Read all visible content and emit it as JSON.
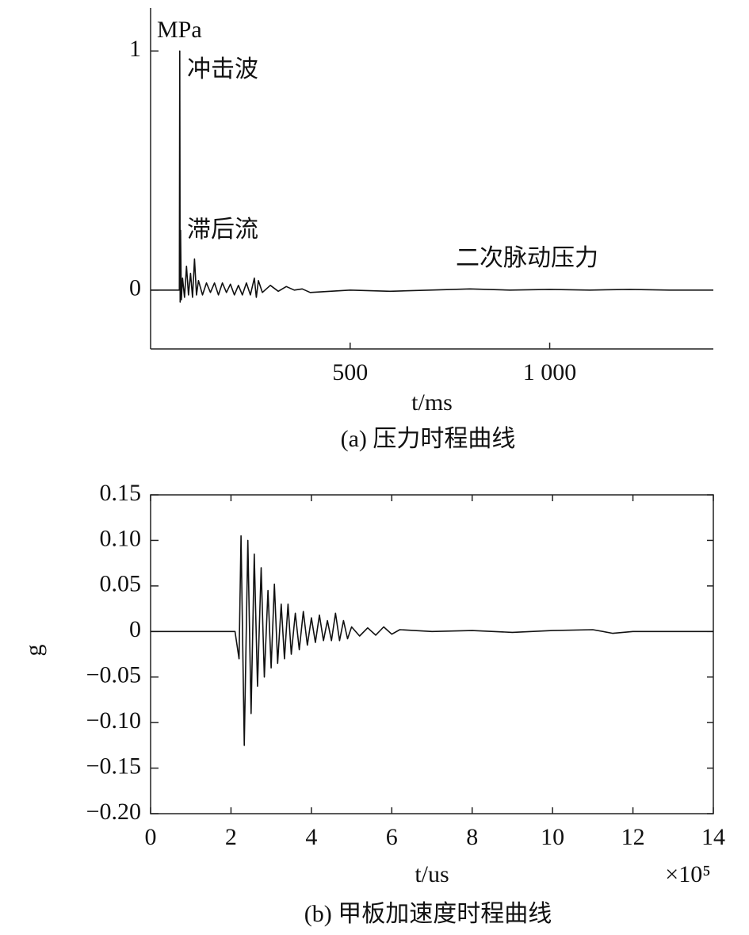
{
  "chart_data": [
    {
      "type": "line",
      "xlabel": "t/ms",
      "caption": "(a) 压力时程曲线",
      "annotations": [
        "MPa",
        "冲击波",
        "滞后流",
        "二次脉动压力"
      ],
      "xlim": [
        0,
        1410
      ],
      "ylim": [
        -0.246,
        1.18
      ],
      "xticks": [
        500,
        {
          "value": 1000,
          "label": "1 000"
        }
      ],
      "yticks": [
        0,
        1
      ],
      "series": [
        {
          "color": "#111111",
          "x": [
            0,
            72,
            73,
            74,
            75,
            77,
            80,
            85,
            90,
            95,
            100,
            105,
            110,
            115,
            120,
            130,
            140,
            150,
            160,
            170,
            180,
            190,
            200,
            210,
            220,
            230,
            240,
            250,
            260,
            265,
            270,
            280,
            300,
            320,
            340,
            360,
            380,
            400,
            450,
            500,
            600,
            700,
            800,
            900,
            1000,
            1100,
            1200,
            1300,
            1410
          ],
          "values": [
            0,
            0,
            1.0,
            -0.05,
            0.25,
            -0.04,
            0.05,
            -0.03,
            0.1,
            -0.02,
            0.07,
            -0.03,
            0.13,
            -0.02,
            0.04,
            -0.02,
            0.03,
            -0.01,
            0.03,
            -0.02,
            0.03,
            -0.01,
            0.025,
            -0.02,
            0.02,
            -0.02,
            0.03,
            -0.02,
            0.05,
            -0.03,
            0.04,
            -0.01,
            0.02,
            -0.005,
            0.015,
            0,
            0.005,
            -0.01,
            -0.005,
            0,
            -0.005,
            0,
            0.005,
            0,
            0.003,
            0,
            0.003,
            0,
            0
          ]
        }
      ]
    },
    {
      "type": "line",
      "xlabel": "t/us",
      "ylabel": "g",
      "x_multiplier": "×10⁵",
      "caption": "(b) 甲板加速度时程曲线",
      "xlim": [
        0,
        14
      ],
      "ylim": [
        -0.2,
        0.15
      ],
      "xticks": [
        0,
        2,
        4,
        6,
        8,
        10,
        12,
        14
      ],
      "yticks": [
        0.15,
        {
          "value": 0.1,
          "label": "0.10"
        },
        0.05,
        0,
        {
          "value": -0.05,
          "label": "−0.05"
        },
        {
          "value": -0.1,
          "label": "−0.10"
        },
        {
          "value": -0.15,
          "label": "−0.15"
        },
        {
          "value": -0.2,
          "label": "−0.20"
        }
      ],
      "series": [
        {
          "color": "#111111",
          "x": [
            0,
            2.1,
            2.2,
            2.25,
            2.33,
            2.42,
            2.5,
            2.58,
            2.66,
            2.75,
            2.83,
            2.92,
            3.0,
            3.08,
            3.16,
            3.25,
            3.33,
            3.42,
            3.5,
            3.6,
            3.7,
            3.8,
            3.9,
            4.0,
            4.1,
            4.2,
            4.3,
            4.4,
            4.5,
            4.6,
            4.7,
            4.8,
            4.9,
            5.0,
            5.2,
            5.4,
            5.6,
            5.8,
            6.0,
            6.2,
            7,
            8,
            9,
            10,
            11,
            11.5,
            12,
            14
          ],
          "values": [
            0,
            0,
            -0.03,
            0.105,
            -0.125,
            0.1,
            -0.09,
            0.085,
            -0.06,
            0.07,
            -0.05,
            0.045,
            -0.04,
            0.052,
            -0.035,
            0.03,
            -0.03,
            0.03,
            -0.025,
            0.02,
            -0.02,
            0.022,
            -0.015,
            0.015,
            -0.012,
            0.018,
            -0.01,
            0.012,
            -0.01,
            0.02,
            -0.01,
            0.012,
            -0.008,
            0.005,
            -0.005,
            0.004,
            -0.004,
            0.005,
            -0.003,
            0.002,
            0,
            0.001,
            -0.001,
            0.001,
            0.002,
            -0.002,
            0,
            0
          ]
        }
      ]
    }
  ]
}
